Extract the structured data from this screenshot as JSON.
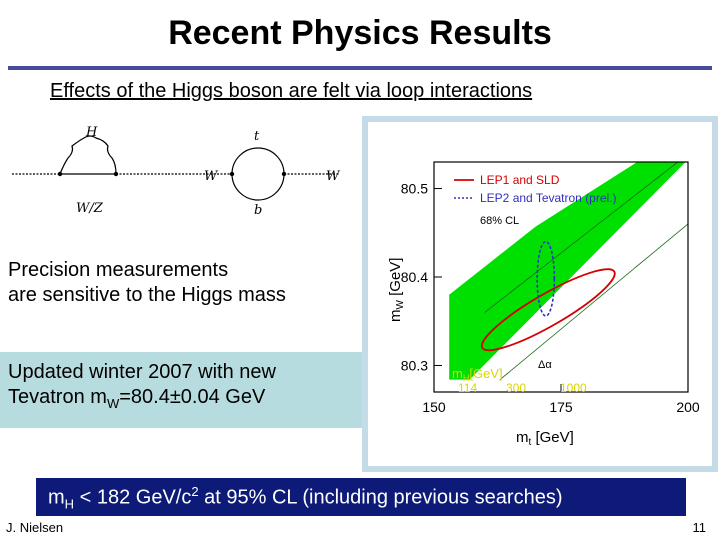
{
  "slide": {
    "title": "Recent Physics Results",
    "subtitle": "Effects of the Higgs boson are felt via loop interactions",
    "precision_line1": "Precision measurements",
    "precision_line2": "are sensitive to the Higgs mass",
    "updated_line1": "Updated winter 2007 with new",
    "updated_line2_prefix": "Tevatron m",
    "updated_line2_sub": "W",
    "updated_line2_suffix": "=80.4±0.04 GeV",
    "result_prefix": "m",
    "result_sub": "H",
    "result_mid": " < 182 GeV/c",
    "result_sup": "2",
    "result_suffix": " at 95% CL  (including previous searches)",
    "author": "J. Nielsen",
    "page_number": "11"
  },
  "diagram": {
    "label_H": "H",
    "label_WZ": "W/Z",
    "label_W_left": "W",
    "label_t": "t",
    "label_b": "b",
    "label_W_right": "W"
  },
  "colors": {
    "title_rule": "#4a4a9c",
    "updated_box": "#b7dce0",
    "result_box": "#0d1a78",
    "plot_frame": "#c3dce8",
    "band_green": "#00e000",
    "lep1_red": "#d40000",
    "lep2_blue": "#3030c0",
    "yellow_text": "#d8d800"
  },
  "chart_data": {
    "type": "scatter",
    "xlabel_main": "m",
    "xlabel_sub": "t",
    "xlabel_unit": "[GeV]",
    "ylabel_main": "m",
    "ylabel_sub": "W",
    "ylabel_unit": "[GeV]",
    "xlim": [
      150,
      200
    ],
    "ylim": [
      80.27,
      80.53
    ],
    "x_ticks": [
      150,
      175,
      200
    ],
    "y_ticks": [
      80.3,
      80.4,
      80.5
    ],
    "legend": {
      "position": "top-left",
      "entries": [
        "LEP1 and SLD",
        "LEP2 and Tevatron (prel.)"
      ],
      "cl_label": "68% CL"
    },
    "alpha_label": "Δα",
    "higgs_band_label_main": "m",
    "higgs_band_label_sub": "H",
    "higgs_band_label_unit": "[GeV]",
    "higgs_mass_values": [
      "114",
      "300",
      "1000"
    ],
    "band_polygon": [
      [
        153,
        80.284
      ],
      [
        157,
        80.284
      ],
      [
        199.5,
        80.53
      ],
      [
        190,
        80.53
      ],
      [
        170,
        80.457
      ],
      [
        153,
        80.38
      ]
    ],
    "lep1_ellipse": {
      "center": [
        172.5,
        80.363
      ],
      "rx_mt": 15,
      "ry_mw": 0.018,
      "angle_deg": -30
    },
    "lep2_ellipse": {
      "center": [
        172.0,
        80.398
      ],
      "rx_mt": 1.7,
      "ry_mw": 0.042
    }
  }
}
